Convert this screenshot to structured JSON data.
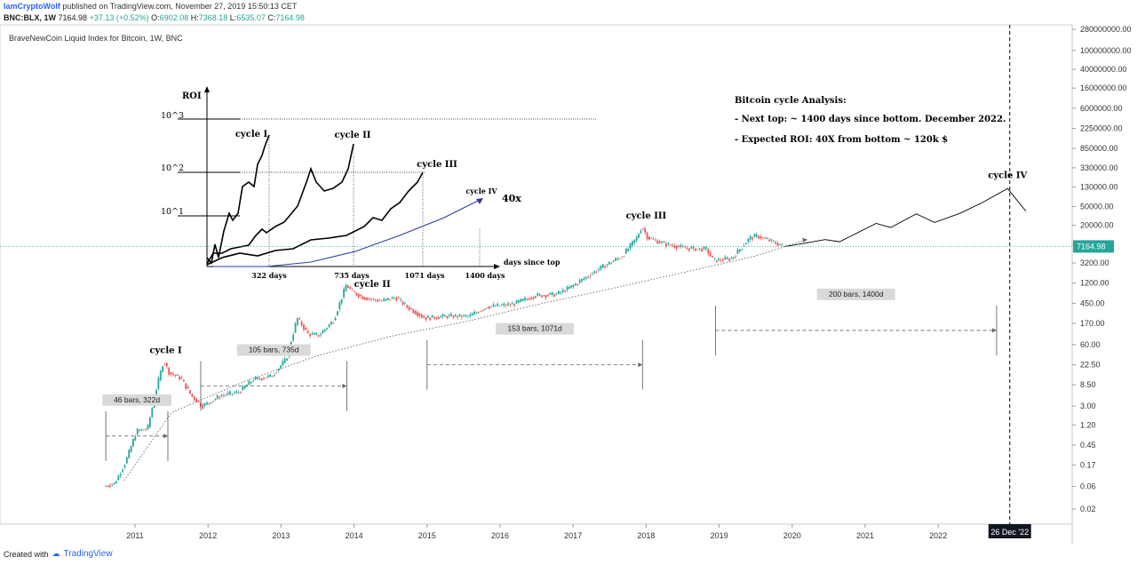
{
  "header": {
    "author": "IamCryptoWolf",
    "published": "published on TradingView.com, November 27, 2019 15:50:13 CET",
    "symbol": "BNC:BLX, 1W",
    "last": "7164.98",
    "change": "+37.13 (+0.52%)",
    "open_label": "O:",
    "open": "6902.08",
    "high_label": "H:",
    "high": "7368.18",
    "low_label": "L:",
    "low": "6535.07",
    "close_label": "C:",
    "close": "7164.98"
  },
  "index_title": "BraveNewCoin Liquid Index for Bitcoin, 1W, BNC",
  "footer": {
    "created_with": "Created with",
    "brand": "TradingView"
  },
  "colors": {
    "up": "#26a69a",
    "down": "#ef5350",
    "accent": "#2962ff",
    "ink": "#000000"
  },
  "chart_data": {
    "type": "line",
    "y_scale": "log",
    "x_ticks": [
      "2011",
      "2012",
      "2013",
      "2014",
      "2015",
      "2016",
      "2017",
      "2018",
      "2019",
      "2020",
      "2021",
      "2022"
    ],
    "y_ticks": [
      "280000000.00",
      "100000000.00",
      "40000000.00",
      "16000000.00",
      "6000000.00",
      "2250000.00",
      "850000.00",
      "330000.00",
      "130000.00",
      "50000.00",
      "20000.00",
      "8000.00",
      "3200.00",
      "1200.00",
      "450.00",
      "170.00",
      "60.00",
      "22.50",
      "8.50",
      "3.00",
      "1.20",
      "0.45",
      "0.17",
      "0.06",
      "0.02"
    ],
    "last_price_label": "7164.98",
    "cursor_date_label": "26 Dec '22",
    "price_path": [
      [
        2010.6,
        0.06
      ],
      [
        2010.75,
        0.07
      ],
      [
        2010.9,
        0.2
      ],
      [
        2011.05,
        0.9
      ],
      [
        2011.2,
        1.0
      ],
      [
        2011.33,
        8.0
      ],
      [
        2011.42,
        28.0
      ],
      [
        2011.5,
        15.0
      ],
      [
        2011.65,
        12.0
      ],
      [
        2011.8,
        5.0
      ],
      [
        2011.95,
        3.0
      ],
      [
        2012.2,
        5.0
      ],
      [
        2012.45,
        6.0
      ],
      [
        2012.65,
        11.0
      ],
      [
        2012.9,
        13.0
      ],
      [
        2013.1,
        30.0
      ],
      [
        2013.25,
        220.0
      ],
      [
        2013.4,
        100.0
      ],
      [
        2013.55,
        95.0
      ],
      [
        2013.75,
        200.0
      ],
      [
        2013.92,
        1100.0
      ],
      [
        2014.0,
        800.0
      ],
      [
        2014.15,
        600.0
      ],
      [
        2014.4,
        500.0
      ],
      [
        2014.6,
        600.0
      ],
      [
        2014.75,
        380.0
      ],
      [
        2015.0,
        220.0
      ],
      [
        2015.3,
        240.0
      ],
      [
        2015.6,
        240.0
      ],
      [
        2015.85,
        380.0
      ],
      [
        2016.2,
        430.0
      ],
      [
        2016.5,
        650.0
      ],
      [
        2016.8,
        700.0
      ],
      [
        2017.0,
        1000.0
      ],
      [
        2017.4,
        2500.0
      ],
      [
        2017.7,
        4500.0
      ],
      [
        2017.9,
        11000.0
      ],
      [
        2017.97,
        19000.0
      ],
      [
        2018.05,
        11000.0
      ],
      [
        2018.3,
        8000.0
      ],
      [
        2018.6,
        6500.0
      ],
      [
        2018.85,
        6300.0
      ],
      [
        2018.95,
        3600.0
      ],
      [
        2019.2,
        4000.0
      ],
      [
        2019.45,
        11000.0
      ],
      [
        2019.55,
        12000.0
      ],
      [
        2019.8,
        8500.0
      ],
      [
        2019.9,
        7165.0
      ]
    ],
    "projection_path": [
      [
        2019.9,
        7165.0
      ],
      [
        2020.1,
        8000.0
      ],
      [
        2020.45,
        10000.0
      ],
      [
        2020.65,
        9000.0
      ],
      [
        2021.15,
        22000.0
      ],
      [
        2021.35,
        18000.0
      ],
      [
        2021.7,
        35000.0
      ],
      [
        2021.95,
        23000.0
      ],
      [
        2022.3,
        36000.0
      ],
      [
        2022.6,
        60000.0
      ],
      [
        2022.95,
        120000.0
      ],
      [
        2023.2,
        40000.0
      ]
    ],
    "trend_curve": [
      [
        2010.85,
        0.08
      ],
      [
        2011.5,
        2.2
      ],
      [
        2012.5,
        10.0
      ],
      [
        2013.5,
        35.0
      ],
      [
        2014.5,
        90.0
      ],
      [
        2015.5,
        180.0
      ],
      [
        2016.5,
        420.0
      ],
      [
        2017.5,
        900.0
      ],
      [
        2018.5,
        2000.0
      ],
      [
        2019.5,
        4500.0
      ],
      [
        2020.2,
        10000.0
      ]
    ],
    "annotations": [
      {
        "text": "cycle I",
        "x": 2011.42,
        "y": 40.0
      },
      {
        "text": "cycle II",
        "x": 2014.25,
        "y": 1000.0
      },
      {
        "text": "cycle III",
        "x": 2018.0,
        "y": 28000.0
      },
      {
        "text": "cycle IV",
        "x": 2022.95,
        "y": 200000.0
      }
    ],
    "measures": [
      {
        "label": "46 bars, 322d",
        "x1": 2010.6,
        "x2": 2011.45,
        "y_mid": 0.7
      },
      {
        "label": "105 bars, 735d",
        "x1": 2011.9,
        "x2": 2013.9,
        "y_mid": 8.0
      },
      {
        "label": "153 bars, 1071d",
        "x1": 2015.0,
        "x2": 2017.95,
        "y_mid": 22.5
      },
      {
        "label": "200 bars, 1400d",
        "x1": 2018.95,
        "x2": 2022.8,
        "y_mid": 120.0
      }
    ],
    "inset": {
      "roi_label": "ROI",
      "x_label": "days since top",
      "y_ticks": [
        "10^3",
        "10^2",
        "10^1"
      ],
      "x_ticks": [
        "322 days",
        "735 days",
        "1071 days",
        "1400 days"
      ],
      "cycles": [
        "cycle I",
        "cycle II",
        "cycle III",
        "cycle IV"
      ],
      "target": "40x"
    },
    "analysis": {
      "title": "Bitcoin cycle Analysis:",
      "line1": "- Next top: ~ 1400 days since bottom. December 2022.",
      "line2": "- Expected ROI: 40X from bottom ~ 120k $"
    }
  }
}
